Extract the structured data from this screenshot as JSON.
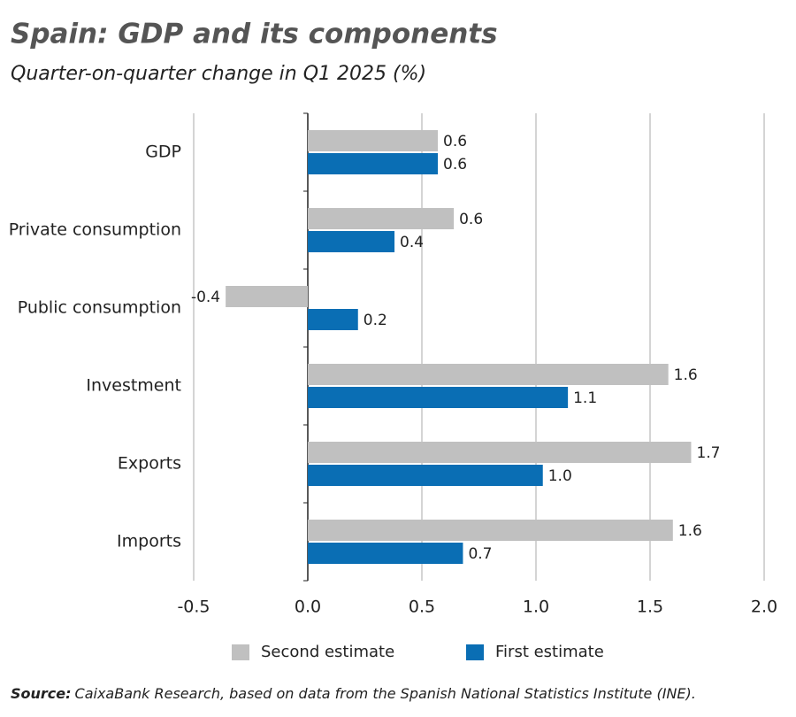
{
  "chart_data": {
    "type": "hbar",
    "title": "Spain: GDP and its components",
    "subtitle": "Quarter-on-quarter change in Q1 2025 (%)",
    "categories": [
      "GDP",
      "Private consumption",
      "Public consumption",
      "Investment",
      "Exports",
      "Imports"
    ],
    "series": [
      {
        "name": "Second estimate",
        "color": "#c0c0c0",
        "values": [
          0.57,
          0.64,
          -0.36,
          1.58,
          1.68,
          1.6
        ],
        "value_labels": [
          "0.6",
          "0.6",
          "-0.4",
          "1.6",
          "1.7",
          "1.6"
        ]
      },
      {
        "name": "First estimate",
        "color": "#0a6eb4",
        "values": [
          0.57,
          0.38,
          0.22,
          1.14,
          1.03,
          0.68
        ],
        "value_labels": [
          "0.6",
          "0.4",
          "0.2",
          "1.1",
          "1.0",
          "0.7"
        ]
      }
    ],
    "xlim": [
      -0.5,
      2.0
    ],
    "xticks": [
      {
        "value": -0.5,
        "label": "-0.5"
      },
      {
        "value": 0,
        "label": "0.0"
      },
      0.5,
      {
        "value": 1,
        "label": "1.0"
      },
      1.5,
      {
        "value": 2,
        "label": "2.0"
      }
    ],
    "grid": true,
    "legend": "bottom",
    "source_label": "Source:",
    "source_text": "CaixaBank Research, based on data from the Spanish National Statistics Institute (INE)."
  }
}
